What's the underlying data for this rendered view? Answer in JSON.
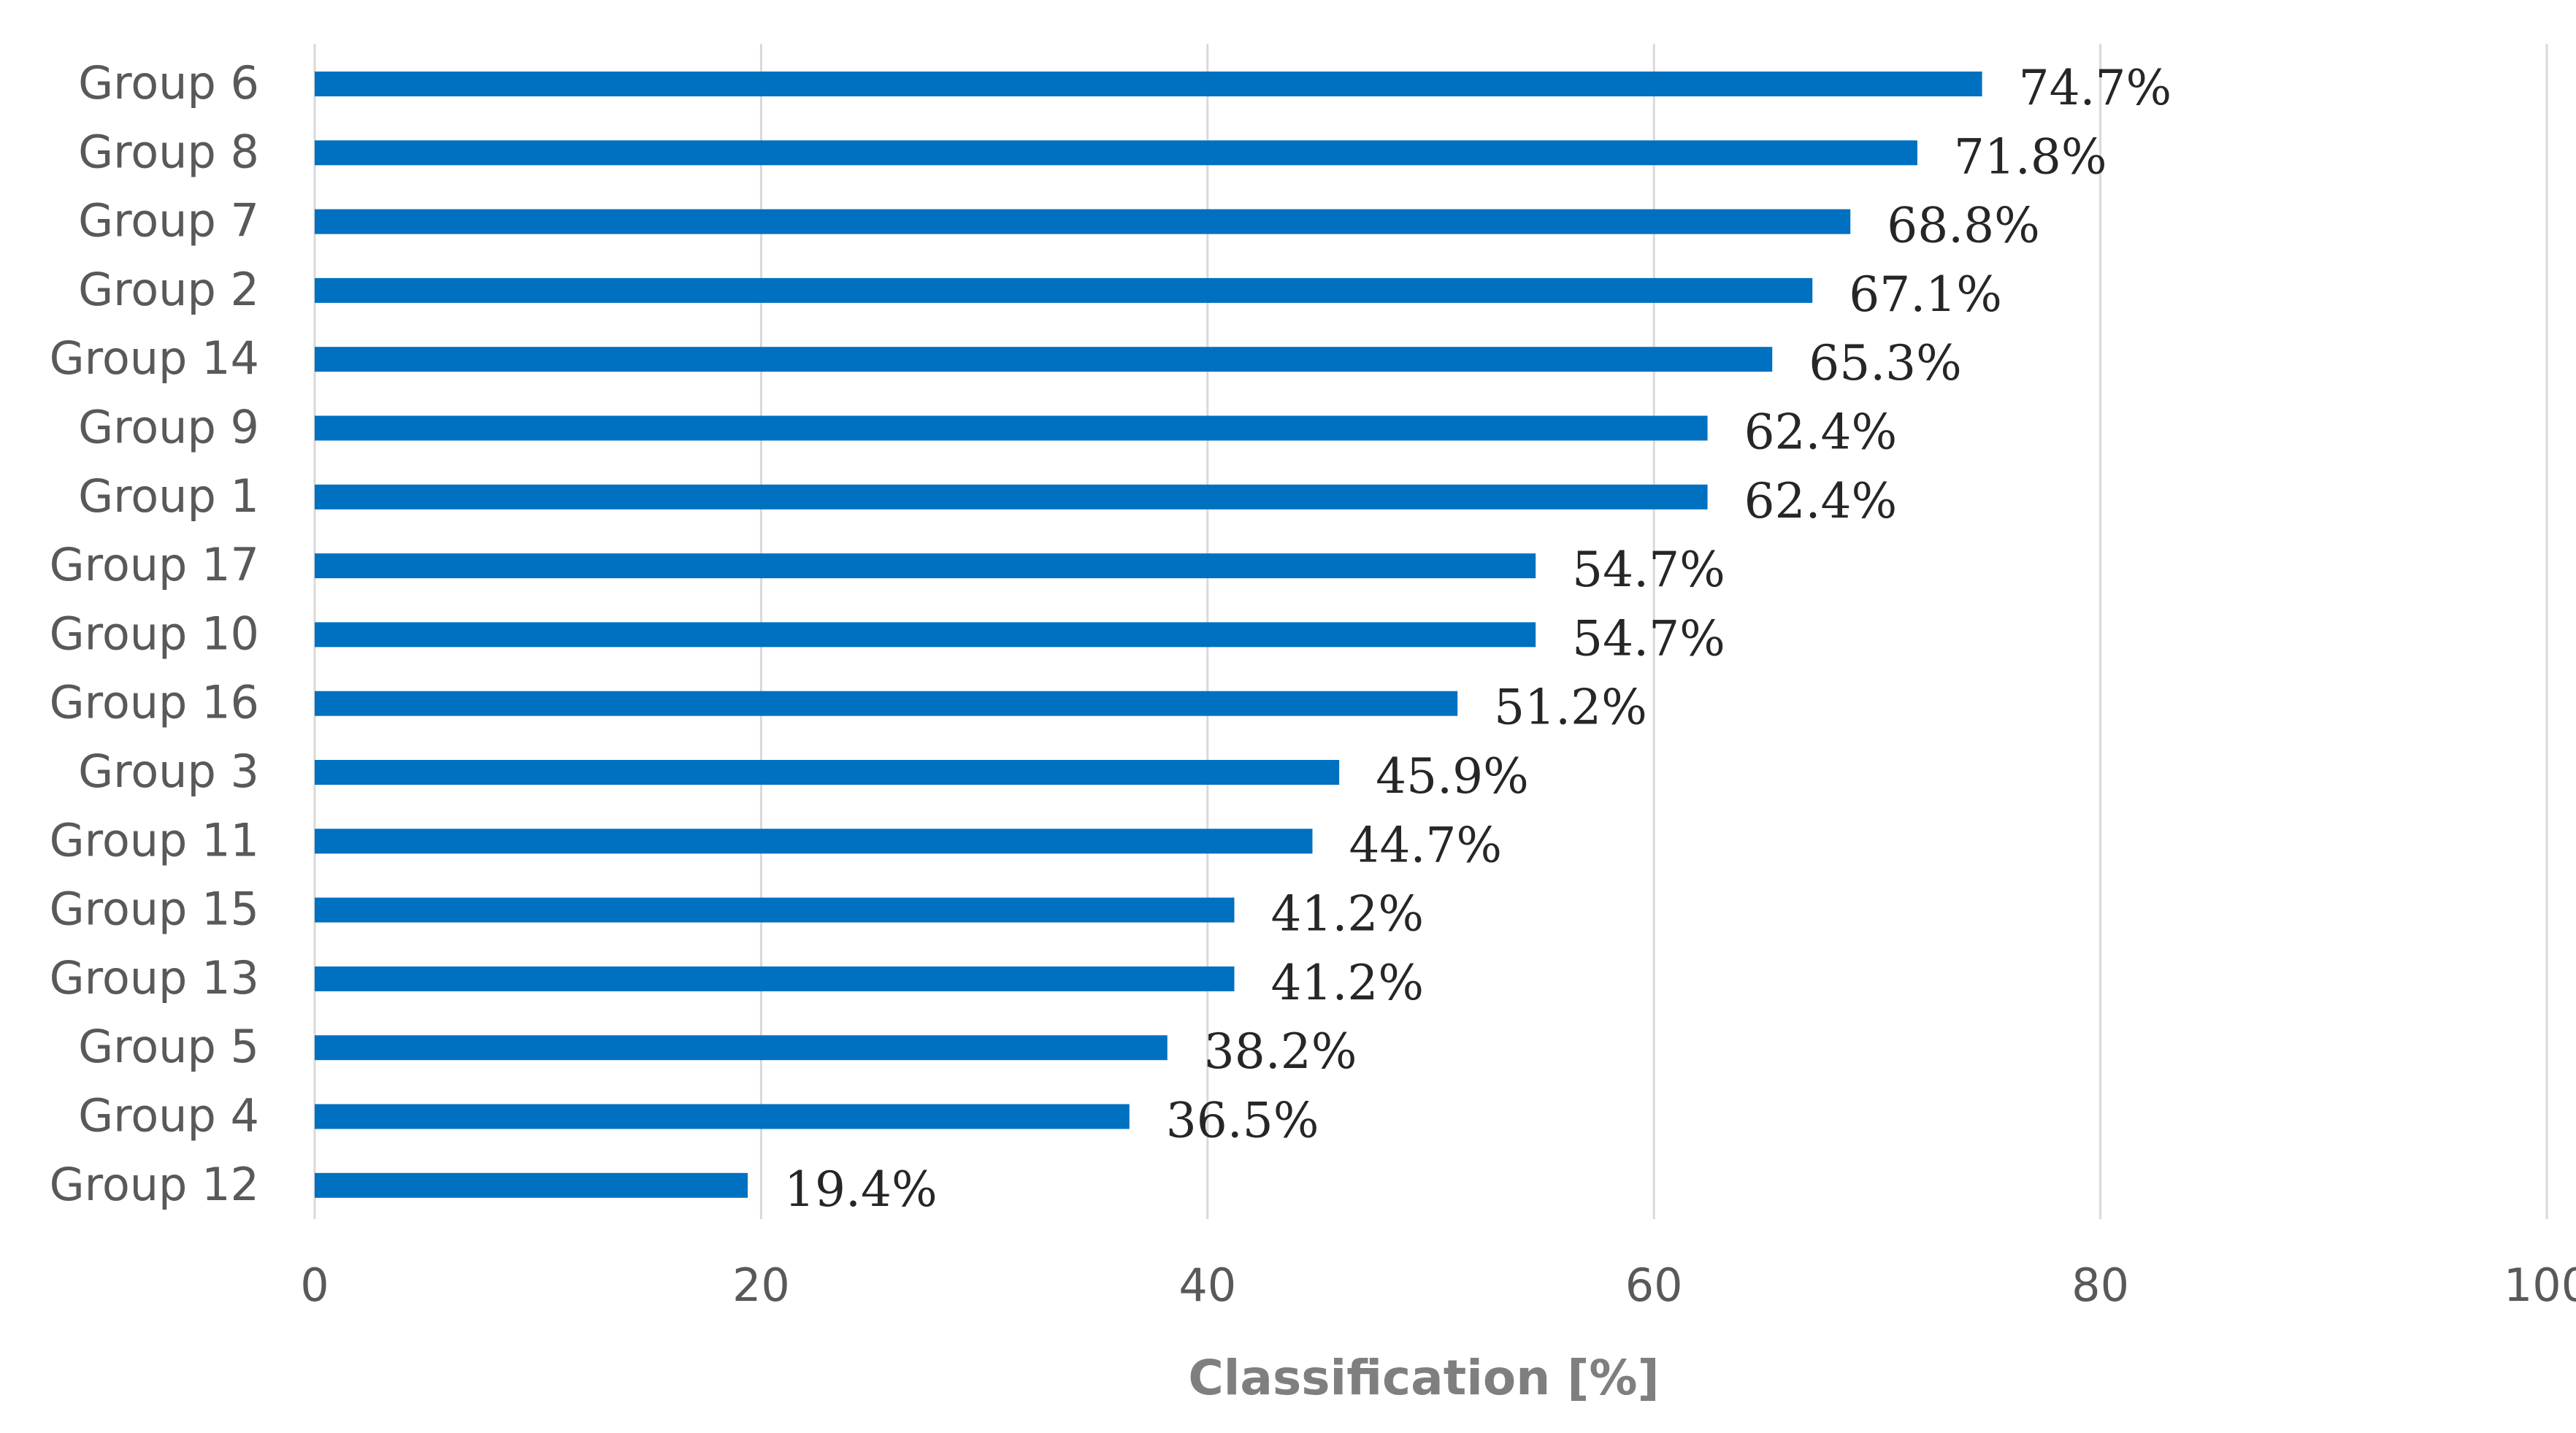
{
  "chart_data": {
    "type": "bar",
    "orientation": "horizontal",
    "title": "",
    "xlabel": "Classification [%]",
    "ylabel": "",
    "xlim": [
      0,
      100
    ],
    "xticks": [
      0,
      20,
      40,
      60,
      80,
      100
    ],
    "grid": true,
    "bar_color": "#0070c0",
    "categories": [
      "Group 6",
      "Group 8",
      "Group 7",
      "Group 2",
      "Group 14",
      "Group 9",
      "Group 1",
      "Group 17",
      "Group 10",
      "Group 16",
      "Group 3",
      "Group 11",
      "Group 15",
      "Group 13",
      "Group 5",
      "Group 4",
      "Group 12"
    ],
    "values": [
      74.7,
      71.8,
      68.8,
      67.1,
      65.3,
      62.4,
      62.4,
      54.7,
      54.7,
      51.2,
      45.9,
      44.7,
      41.2,
      41.2,
      38.2,
      36.5,
      19.4
    ],
    "value_labels": [
      "74.7%",
      "71.8%",
      "68.8%",
      "67.1%",
      "65.3%",
      "62.4%",
      "62.4%",
      "54.7%",
      "54.7%",
      "51.2%",
      "45.9%",
      "44.7%",
      "41.2%",
      "41.2%",
      "38.2%",
      "36.5%",
      "19.4%"
    ]
  }
}
